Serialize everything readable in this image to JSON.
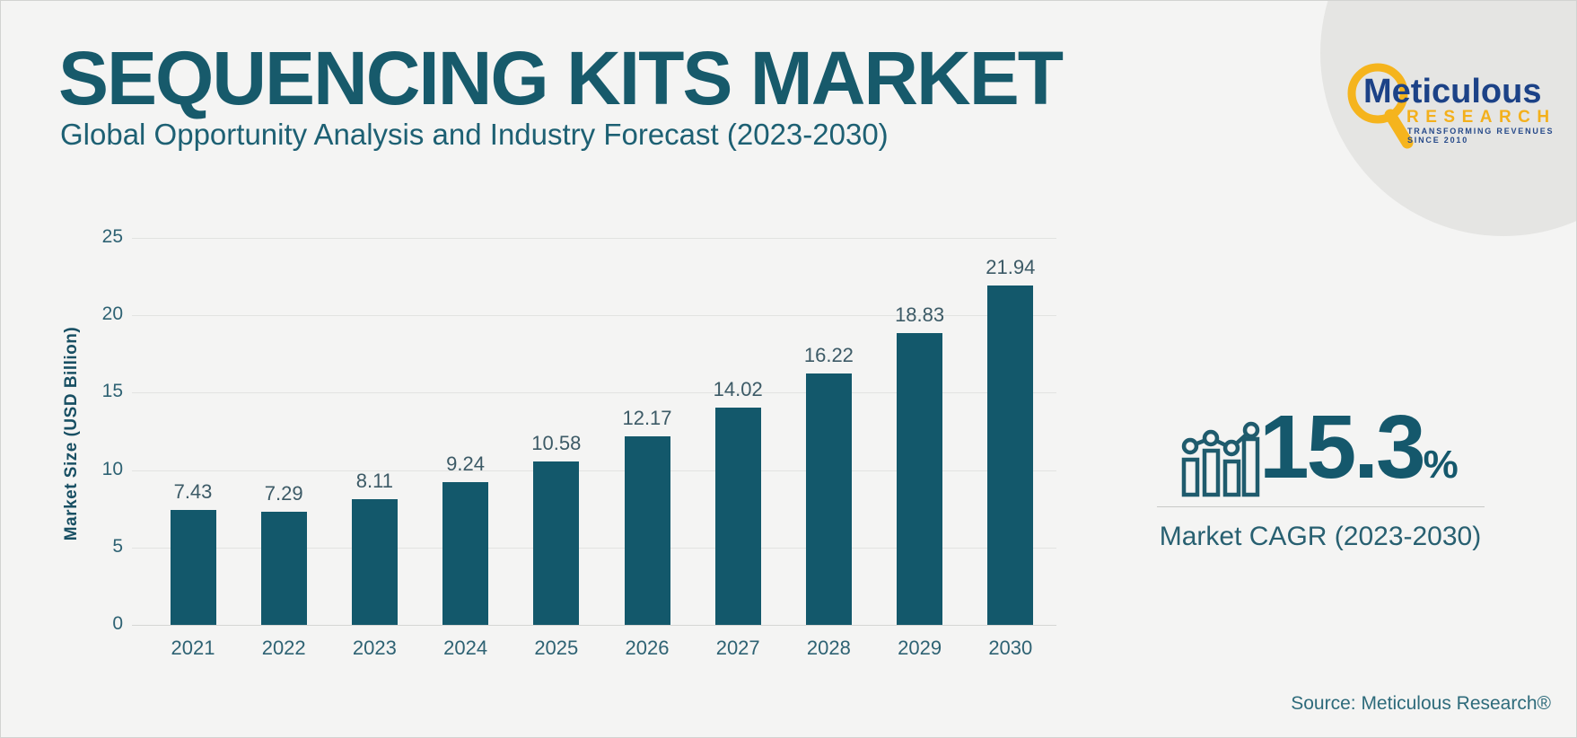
{
  "header": {
    "title": "SEQUENCING KITS MARKET",
    "subtitle": "Global Opportunity Analysis and Industry Forecast (2023-2030)"
  },
  "logo": {
    "name": "Meticulous",
    "research": "RESEARCH",
    "tagline": "TRANSFORMING REVENUES SINCE 2010",
    "navy": "#1c4287",
    "yellow": "#f5b41d"
  },
  "chart_data": {
    "type": "bar",
    "categories": [
      "2021",
      "2022",
      "2023",
      "2024",
      "2025",
      "2026",
      "2027",
      "2028",
      "2029",
      "2030"
    ],
    "values": [
      7.43,
      7.29,
      8.11,
      9.24,
      10.58,
      12.17,
      14.02,
      16.22,
      18.83,
      21.94
    ],
    "title": "",
    "xlabel": "",
    "ylabel": "Market Size (USD Billion)",
    "ylim": [
      0,
      25
    ],
    "yticks": [
      0,
      5,
      10,
      15,
      20,
      25
    ],
    "grid": true,
    "legend": "none",
    "bar_color": "#13586b"
  },
  "cagr": {
    "value": "15.3",
    "percent": "%",
    "caption": "Market CAGR (2023-2030)"
  },
  "source": "Source: Meticulous Research®",
  "colors": {
    "background": "#f4f4f3",
    "accent_teal": "#175a6b",
    "circle_gray": "#e5e5e3",
    "gridline": "#e2e3e1",
    "label_slate": "#3c5a66"
  }
}
